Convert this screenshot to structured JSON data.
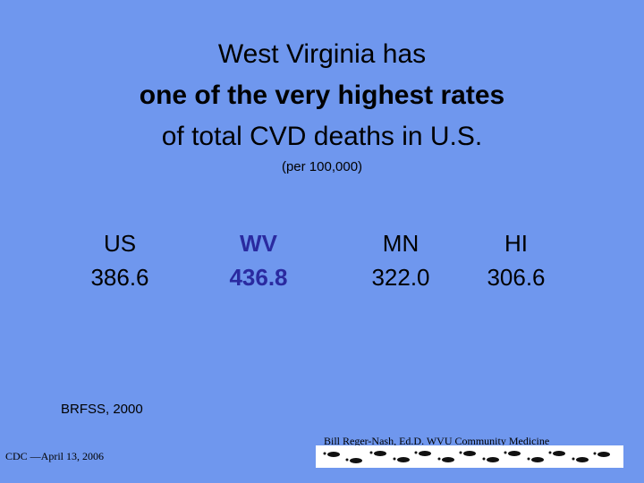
{
  "title": {
    "line1": "West Virginia has",
    "line2": "one of the very highest rates",
    "line3": "of total CVD deaths in U.S."
  },
  "subtitle": "(per 100,000)",
  "stats": [
    {
      "label": "US",
      "value": "386.6"
    },
    {
      "label": "WV",
      "value": "436.8"
    },
    {
      "label": "MN",
      "value": "322.0"
    },
    {
      "label": "HI",
      "value": "306.6"
    }
  ],
  "source": "BRFSS, 2000",
  "credit": "Bill Reger-Nash, Ed.D. WVU Community Medicine",
  "date_note": "CDC —April 13, 2006",
  "colors": {
    "background": "#6f97ee",
    "highlight": "#2a2aa0"
  },
  "footer_image": "footprints-banner"
}
